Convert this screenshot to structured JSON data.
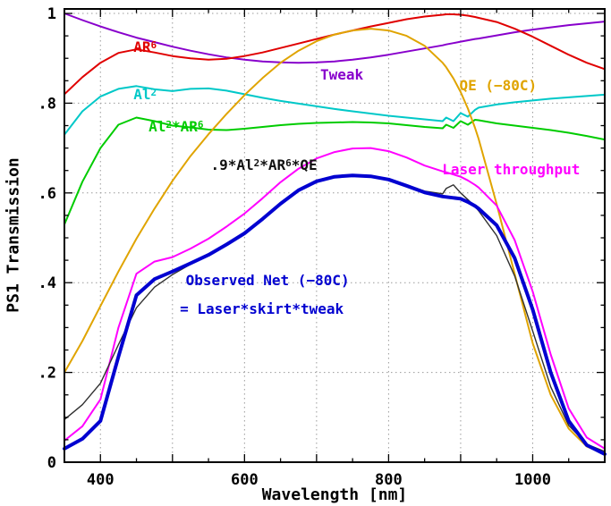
{
  "chart_data": {
    "type": "line",
    "title": "",
    "xlabel": "Wavelength [nm]",
    "ylabel": "PS1 Transmission",
    "xlim": [
      350,
      1100
    ],
    "ylim": [
      0,
      1.01
    ],
    "grid": true,
    "x_grid": [
      400,
      500,
      600,
      700,
      800,
      900,
      1000
    ],
    "y_grid": [
      0.2,
      0.4,
      0.6,
      0.8,
      1.0
    ],
    "x_tick_labels": [
      {
        "v": 400,
        "label": "400"
      },
      {
        "v": 600,
        "label": "600"
      },
      {
        "v": 800,
        "label": "800"
      },
      {
        "v": 1000,
        "label": "1000"
      }
    ],
    "y_tick_labels": [
      {
        "v": 0,
        "label": "0"
      },
      {
        "v": 0.2,
        "label": ".2"
      },
      {
        "v": 0.4,
        "label": ".4"
      },
      {
        "v": 0.6,
        "label": ".6"
      },
      {
        "v": 0.8,
        "label": ".8"
      },
      {
        "v": 1.0,
        "label": "1"
      }
    ],
    "x_minor_step": 50,
    "x_major_step": 100,
    "y_minor_step": 0.05,
    "y_major_step": 0.2,
    "x": [
      350,
      375,
      400,
      425,
      450,
      475,
      500,
      525,
      550,
      575,
      600,
      625,
      650,
      675,
      700,
      725,
      750,
      775,
      800,
      825,
      850,
      875,
      880,
      890,
      900,
      910,
      920,
      925,
      950,
      975,
      1000,
      1025,
      1050,
      1075,
      1100
    ],
    "series": [
      {
        "name": "Tweak",
        "color": "#8800cc",
        "width": 2,
        "values": [
          1.0,
          0.985,
          0.971,
          0.958,
          0.946,
          0.936,
          0.926,
          0.917,
          0.909,
          0.902,
          0.897,
          0.893,
          0.891,
          0.89,
          0.891,
          0.893,
          0.897,
          0.902,
          0.908,
          0.915,
          0.922,
          0.929,
          0.931,
          0.934,
          0.937,
          0.94,
          0.943,
          0.944,
          0.951,
          0.958,
          0.964,
          0.969,
          0.974,
          0.978,
          0.982
        ]
      },
      {
        "name": "AR^6",
        "color": "#e00000",
        "width": 2,
        "values": [
          0.82,
          0.858,
          0.89,
          0.912,
          0.92,
          0.913,
          0.905,
          0.9,
          0.897,
          0.899,
          0.905,
          0.913,
          0.923,
          0.933,
          0.943,
          0.953,
          0.962,
          0.971,
          0.979,
          0.987,
          0.993,
          0.997,
          0.998,
          0.998,
          0.997,
          0.995,
          0.992,
          0.99,
          0.981,
          0.966,
          0.948,
          0.928,
          0.908,
          0.89,
          0.876
        ]
      },
      {
        "name": "Al^2",
        "color": "#00c8c8",
        "width": 2,
        "values": [
          0.73,
          0.782,
          0.815,
          0.832,
          0.838,
          0.831,
          0.827,
          0.832,
          0.833,
          0.828,
          0.82,
          0.812,
          0.805,
          0.799,
          0.793,
          0.787,
          0.782,
          0.777,
          0.772,
          0.768,
          0.764,
          0.76,
          0.768,
          0.76,
          0.778,
          0.77,
          0.785,
          0.79,
          0.797,
          0.802,
          0.806,
          0.81,
          0.813,
          0.816,
          0.819
        ]
      },
      {
        "name": "Al^2*AR^6",
        "color": "#00cc00",
        "width": 2,
        "values": [
          0.53,
          0.625,
          0.7,
          0.752,
          0.768,
          0.76,
          0.75,
          0.746,
          0.741,
          0.74,
          0.743,
          0.747,
          0.751,
          0.754,
          0.756,
          0.757,
          0.758,
          0.757,
          0.755,
          0.751,
          0.747,
          0.744,
          0.752,
          0.745,
          0.76,
          0.752,
          0.763,
          0.762,
          0.755,
          0.75,
          0.745,
          0.74,
          0.734,
          0.727,
          0.719
        ]
      },
      {
        "name": "QE (−80C)",
        "color": "#e0a400",
        "width": 2,
        "values": [
          0.2,
          0.27,
          0.348,
          0.425,
          0.498,
          0.565,
          0.627,
          0.682,
          0.731,
          0.776,
          0.818,
          0.856,
          0.89,
          0.917,
          0.938,
          0.953,
          0.962,
          0.966,
          0.962,
          0.95,
          0.928,
          0.89,
          0.88,
          0.855,
          0.825,
          0.788,
          0.745,
          0.72,
          0.575,
          0.42,
          0.265,
          0.15,
          0.075,
          0.035,
          0.018
        ]
      },
      {
        "name": "Laser throughput",
        "color": "#ff00ff",
        "width": 2,
        "values": [
          0.048,
          0.08,
          0.14,
          0.3,
          0.42,
          0.447,
          0.457,
          0.476,
          0.498,
          0.525,
          0.554,
          0.588,
          0.624,
          0.654,
          0.677,
          0.691,
          0.699,
          0.7,
          0.693,
          0.679,
          0.661,
          0.648,
          0.646,
          0.641,
          0.636,
          0.628,
          0.618,
          0.612,
          0.572,
          0.495,
          0.38,
          0.24,
          0.12,
          0.055,
          0.03
        ]
      },
      {
        "name": ".9*Al^2*AR^6*QE",
        "color": "#303030",
        "width": 1.4,
        "values": [
          0.095,
          0.128,
          0.176,
          0.262,
          0.344,
          0.39,
          0.418,
          0.441,
          0.461,
          0.486,
          0.511,
          0.543,
          0.577,
          0.605,
          0.624,
          0.635,
          0.64,
          0.638,
          0.631,
          0.618,
          0.604,
          0.598,
          0.61,
          0.618,
          0.6,
          0.585,
          0.57,
          0.56,
          0.505,
          0.415,
          0.292,
          0.168,
          0.082,
          0.04,
          0.024
        ]
      },
      {
        "name": "Observed Net (−80C) = Laser*skirt*tweak",
        "color": "#0000d0",
        "width": 4,
        "values": [
          0.03,
          0.052,
          0.092,
          0.235,
          0.372,
          0.408,
          0.425,
          0.443,
          0.462,
          0.485,
          0.51,
          0.542,
          0.576,
          0.606,
          0.626,
          0.636,
          0.639,
          0.637,
          0.63,
          0.616,
          0.601,
          0.592,
          0.591,
          0.589,
          0.587,
          0.58,
          0.571,
          0.565,
          0.528,
          0.455,
          0.34,
          0.2,
          0.092,
          0.038,
          0.018
        ]
      }
    ],
    "annotations": [
      {
        "text": "AR^6",
        "color": "#e00000",
        "x": 462,
        "y": 0.925
      },
      {
        "text": "Tweak",
        "color": "#8800cc",
        "x": 735,
        "y": 0.862
      },
      {
        "text": "Al^2",
        "color": "#00c8c8",
        "x": 462,
        "y": 0.818
      },
      {
        "text": "Al^2*AR^6",
        "color": "#00cc00",
        "x": 505,
        "y": 0.748
      },
      {
        "text": "QE (−80C)",
        "color": "#e0a400",
        "x": 952,
        "y": 0.838
      },
      {
        "text": ".9*Al^2*AR^6*QE",
        "color": "#111111",
        "x": 627,
        "y": 0.662
      },
      {
        "text": "Laser throughput",
        "color": "#ff00ff",
        "x": 970,
        "y": 0.652
      },
      {
        "text": "Observed Net (−80C)",
        "color": "#0000d0",
        "x": 632,
        "y": 0.405
      },
      {
        "text": "= Laser*skirt*tweak",
        "color": "#0000d0",
        "x": 624,
        "y": 0.34
      }
    ]
  }
}
